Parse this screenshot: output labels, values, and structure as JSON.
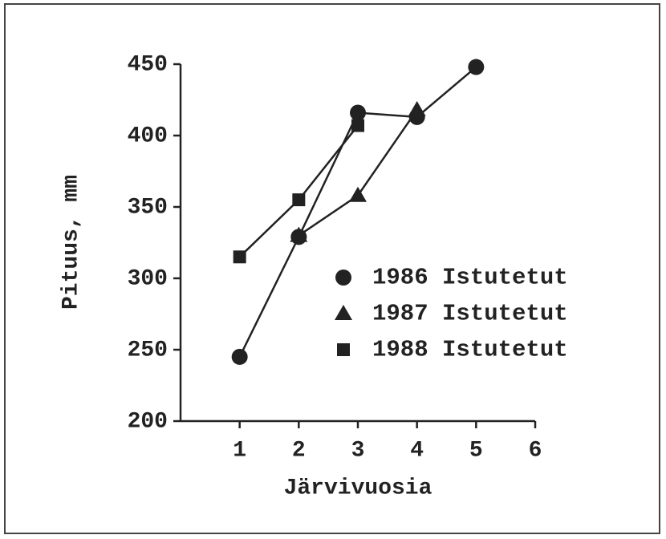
{
  "chart_data": {
    "type": "line",
    "x_label": "Järvivuosia",
    "y_label": "Pituus, mm",
    "x": [
      1,
      2,
      3,
      4,
      5
    ],
    "series": [
      {
        "name": "1986 Istutetut",
        "color": "#222222",
        "marker": "circle",
        "values": [
          245,
          329,
          416,
          413,
          448
        ]
      },
      {
        "name": "1987 Istutetut",
        "color": "#222222",
        "marker": "triangle",
        "values": [
          null,
          330,
          358,
          418,
          null
        ]
      },
      {
        "name": "1988 Istutetut",
        "color": "#222222",
        "marker": "square",
        "values": [
          315,
          355,
          407,
          null,
          null
        ]
      }
    ],
    "xlim": [
      0,
      6
    ],
    "xticks": [
      1,
      2,
      3,
      4,
      5,
      6
    ],
    "ylim": [
      200,
      450
    ],
    "yticks": [
      200,
      250,
      300,
      350,
      400,
      450
    ],
    "grid": false,
    "legend": "center right"
  }
}
